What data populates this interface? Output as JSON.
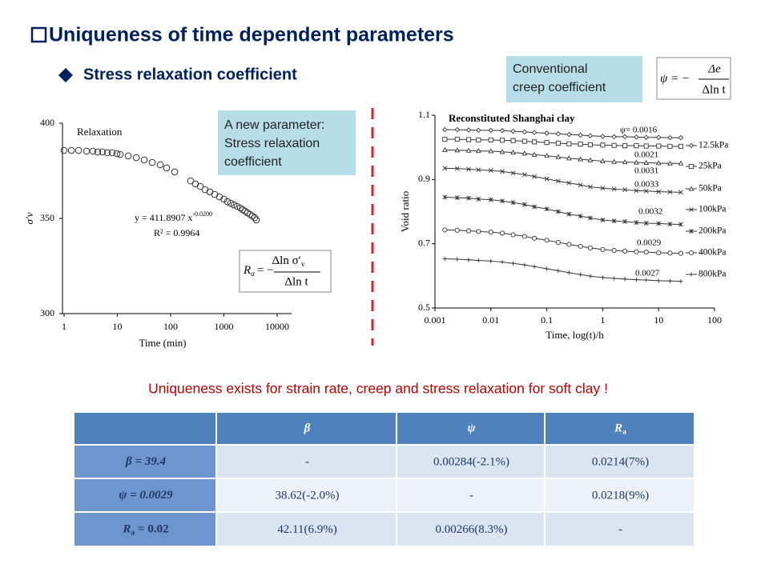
{
  "title": "Uniqueness of time dependent parameters",
  "subtitle": "Stress relaxation coefficient",
  "new_parameter_box": [
    "A new parameter:",
    "Stress relaxation",
    "coefficient"
  ],
  "creep_box": [
    "Conventional",
    "creep coefficient"
  ],
  "formula_relaxation": {
    "lhs": "R",
    "lhs_sub": "α",
    "eq": "= −",
    "num": "Δln σ′",
    "num_sub": "v",
    "den": "Δln t"
  },
  "formula_creep": {
    "lhs": "ψ = −",
    "num": "Δe",
    "den": "Δln t"
  },
  "statement": "Uniqueness exists for strain rate, creep and stress relaxation for soft clay !",
  "chart_data": [
    {
      "type": "scatter",
      "label": "Relaxation",
      "equation": "y = 411.8907 x",
      "equation_exponent": "-0.0200",
      "r_squared": "R² = 0.9964",
      "xlabel": "Time (min)",
      "ylabel": "σ′v",
      "xscale": "log",
      "xlim": [
        1,
        10000
      ],
      "xticks": [
        1,
        10,
        100,
        1000,
        10000
      ],
      "ylim": [
        300,
        400
      ],
      "yticks": [
        300,
        350,
        400
      ],
      "color": "#333333",
      "x": [
        1,
        1.37,
        1.87,
        2.64,
        3.48,
        4.28,
        5.27,
        6.49,
        7.98,
        9.83,
        11.3,
        16,
        22.6,
        31.9,
        45.1,
        63.8,
        84.1,
        119,
        238,
        292,
        360,
        443,
        546,
        671,
        827,
        1000,
        1169,
        1343,
        1543,
        1771,
        2033,
        2254,
        2500,
        2780,
        3083,
        3420,
        3793,
        4064
      ],
      "values": [
        385.7,
        385.7,
        385.7,
        385.3,
        385.3,
        384.9,
        384.9,
        384.5,
        384.5,
        384.0,
        383.6,
        382.8,
        381.9,
        380.7,
        379.4,
        378.2,
        376.5,
        374.4,
        369.7,
        368.1,
        366.8,
        365.1,
        363.9,
        362.6,
        361.3,
        360.1,
        358.8,
        357.9,
        357.1,
        356.3,
        355.5,
        354.6,
        353.8,
        352.9,
        352.1,
        351.3,
        350.4,
        349.2
      ]
    },
    {
      "type": "line",
      "title": "Reconstituted Shanghai clay",
      "xlabel": "Time, log(t)/h",
      "ylabel": "Void ratio",
      "xscale": "log",
      "xlim": [
        0.001,
        100
      ],
      "xticks": [
        0.001,
        0.01,
        0.1,
        1,
        10,
        100
      ],
      "ylim": [
        0.5,
        1.1
      ],
      "yticks": [
        0.5,
        0.7,
        0.9,
        1.1
      ],
      "annotations": [
        "ψ= 0.0016",
        "0.0021",
        "0.0031",
        "0.0033",
        "0.0032",
        "0.0029",
        "0.0027"
      ],
      "x": [
        0.0015,
        0.0025,
        0.004,
        0.006,
        0.01,
        0.016,
        0.025,
        0.04,
        0.06,
        0.1,
        0.16,
        0.25,
        0.4,
        0.6,
        1,
        1.6,
        2.5,
        4,
        6,
        10,
        16,
        25
      ],
      "series": [
        {
          "name": "12.5kPa",
          "color": "#333333",
          "marker": "diamond",
          "values": [
            1.055,
            1.055,
            1.054,
            1.053,
            1.053,
            1.052,
            1.05,
            1.048,
            1.046,
            1.044,
            1.042,
            1.04,
            1.038,
            1.036,
            1.034,
            1.033,
            1.033,
            1.032,
            1.031,
            1.031,
            1.03,
            1.03
          ]
        },
        {
          "name": "25kPa",
          "color": "#333333",
          "marker": "square",
          "values": [
            1.025,
            1.025,
            1.024,
            1.023,
            1.023,
            1.022,
            1.021,
            1.019,
            1.017,
            1.015,
            1.013,
            1.011,
            1.01,
            1.008,
            1.007,
            1.006,
            1.005,
            1.005,
            1.004,
            1.004,
            1.003,
            1.003
          ]
        },
        {
          "name": "50kPa",
          "color": "#333333",
          "marker": "triangle",
          "values": [
            0.992,
            0.991,
            0.99,
            0.989,
            0.988,
            0.986,
            0.984,
            0.981,
            0.977,
            0.974,
            0.97,
            0.966,
            0.963,
            0.96,
            0.957,
            0.955,
            0.954,
            0.953,
            0.952,
            0.951,
            0.95,
            0.95
          ]
        },
        {
          "name": "100kPa",
          "color": "#333333",
          "marker": "x",
          "values": [
            0.935,
            0.934,
            0.932,
            0.93,
            0.928,
            0.925,
            0.92,
            0.915,
            0.909,
            0.902,
            0.895,
            0.889,
            0.883,
            0.877,
            0.873,
            0.87,
            0.868,
            0.865,
            0.864,
            0.862,
            0.861,
            0.86
          ]
        },
        {
          "name": "200kPa",
          "color": "#333333",
          "marker": "asterisk",
          "values": [
            0.845,
            0.843,
            0.842,
            0.839,
            0.837,
            0.833,
            0.828,
            0.822,
            0.815,
            0.808,
            0.8,
            0.792,
            0.786,
            0.78,
            0.774,
            0.771,
            0.769,
            0.766,
            0.764,
            0.763,
            0.761,
            0.76
          ]
        },
        {
          "name": "400kPa",
          "color": "#333333",
          "marker": "circle",
          "values": [
            0.743,
            0.742,
            0.74,
            0.738,
            0.736,
            0.733,
            0.728,
            0.723,
            0.717,
            0.711,
            0.704,
            0.698,
            0.692,
            0.687,
            0.682,
            0.679,
            0.677,
            0.675,
            0.674,
            0.672,
            0.671,
            0.67
          ]
        },
        {
          "name": "800kPa",
          "color": "#333333",
          "marker": "plus",
          "values": [
            0.653,
            0.652,
            0.65,
            0.648,
            0.646,
            0.643,
            0.639,
            0.634,
            0.629,
            0.622,
            0.616,
            0.61,
            0.604,
            0.599,
            0.595,
            0.592,
            0.59,
            0.588,
            0.587,
            0.585,
            0.584,
            0.583
          ]
        }
      ]
    }
  ],
  "table": {
    "header": [
      {
        "text": "β"
      },
      {
        "text": "ψ"
      },
      {
        "text": "R",
        "sub": "a"
      }
    ],
    "row_labels": [
      {
        "text": "β = 39.4"
      },
      {
        "text": "ψ = 0.0029"
      },
      {
        "text": "R",
        "sub": "a",
        "rest": " = 0.02"
      }
    ],
    "rows": [
      [
        "-",
        "0.00284(-2.1%)",
        "0.0214(7%)"
      ],
      [
        "38.62(-2.0%)",
        "-",
        "0.0218(9%)"
      ],
      [
        "42.11(6.9%)",
        "0.00266(8.3%)",
        "-"
      ]
    ]
  }
}
